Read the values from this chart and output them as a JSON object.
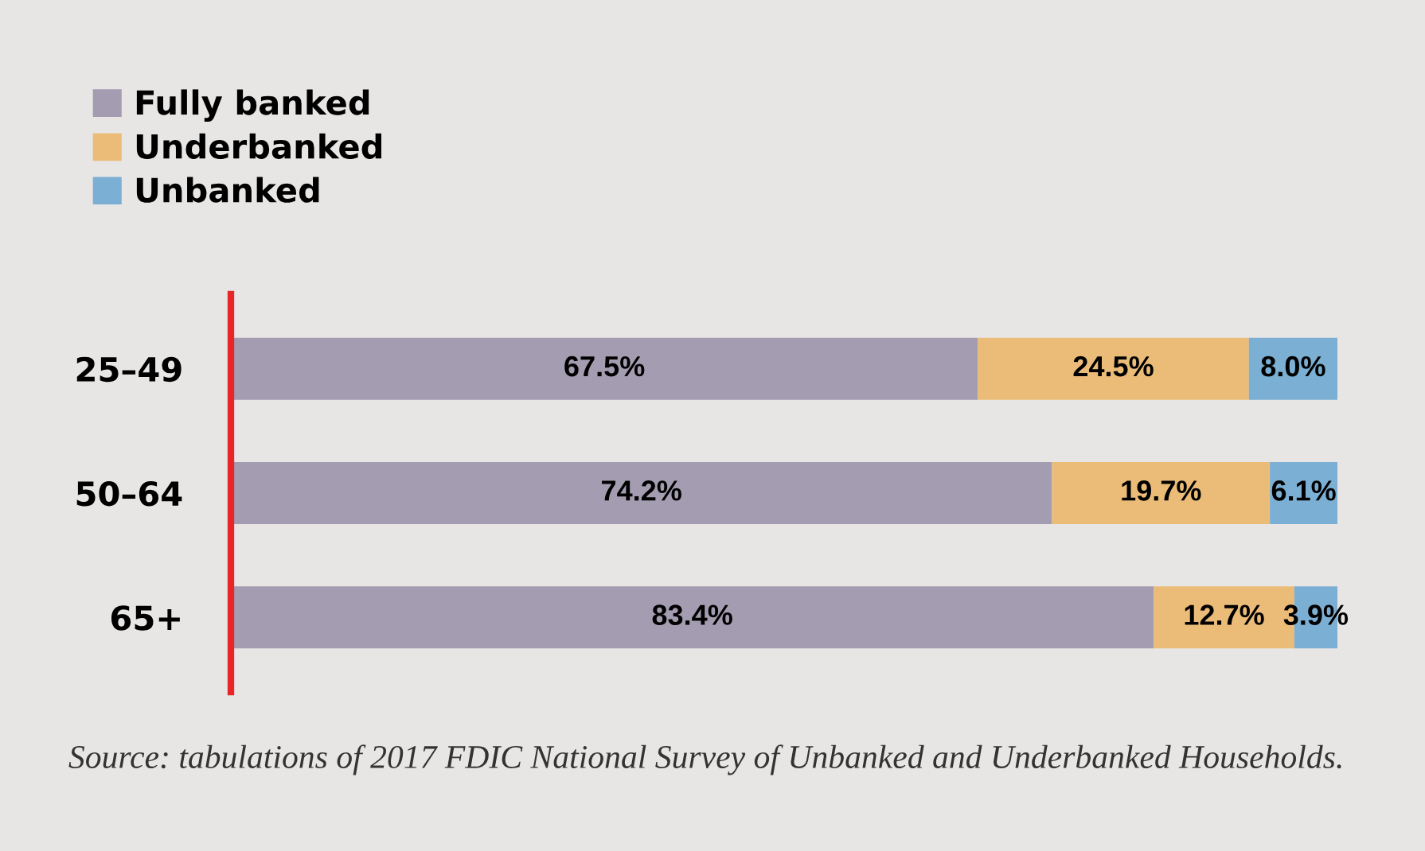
{
  "chart_data": {
    "type": "bar",
    "orientation": "horizontal",
    "stacked": true,
    "categories": [
      "25–49",
      "50–64",
      "65+"
    ],
    "series": [
      {
        "name": "Fully banked",
        "color": "#a49cb0",
        "values": [
          67.5,
          74.2,
          83.4
        ],
        "value_labels": [
          "67.5%",
          "74.2%",
          "83.4%"
        ]
      },
      {
        "name": "Underbanked",
        "color": "#ebbc78",
        "values": [
          24.5,
          19.7,
          12.7
        ],
        "value_labels": [
          "24.5%",
          "19.7%",
          "12.7%"
        ]
      },
      {
        "name": "Unbanked",
        "color": "#7bafd4",
        "values": [
          8.0,
          6.1,
          3.9
        ],
        "value_labels": [
          "8.0%",
          "6.1%",
          "3.9%"
        ]
      }
    ],
    "tick_labels": "y",
    "legend": "top left",
    "grid": false,
    "annotations": [
      "Source: tabulations of 2017 FDIC National Survey of Unbanked and Underbanked Households."
    ]
  }
}
